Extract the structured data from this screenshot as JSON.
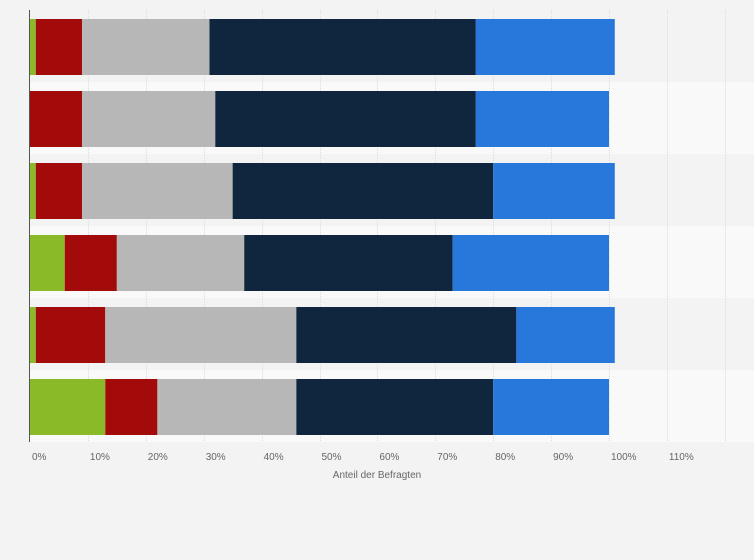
{
  "chart_data": {
    "type": "bar",
    "orientation": "horizontal",
    "stacked": true,
    "title": "",
    "xlabel": "Anteil der Befragten",
    "ylabel": "",
    "xlim": [
      0,
      120
    ],
    "xticks": [
      "0%",
      "10%",
      "20%",
      "30%",
      "40%",
      "50%",
      "60%",
      "70%",
      "80%",
      "90%",
      "100%",
      "110%"
    ],
    "grid": true,
    "legend": "none",
    "categories": [
      "",
      "",
      "",
      "",
      "",
      ""
    ],
    "series": [
      {
        "color": "#8aba28",
        "values": [
          1,
          0,
          1,
          6,
          1,
          13
        ]
      },
      {
        "color": "#a30b0b",
        "values": [
          8,
          9,
          8,
          9,
          12,
          9
        ]
      },
      {
        "color": "#b7b7b7",
        "values": [
          22,
          23,
          26,
          22,
          33,
          24
        ]
      },
      {
        "color": "#10263e",
        "values": [
          46,
          45,
          45,
          36,
          38,
          34
        ]
      },
      {
        "color": "#2878dc",
        "values": [
          24,
          23,
          21,
          27,
          17,
          20
        ]
      }
    ]
  }
}
